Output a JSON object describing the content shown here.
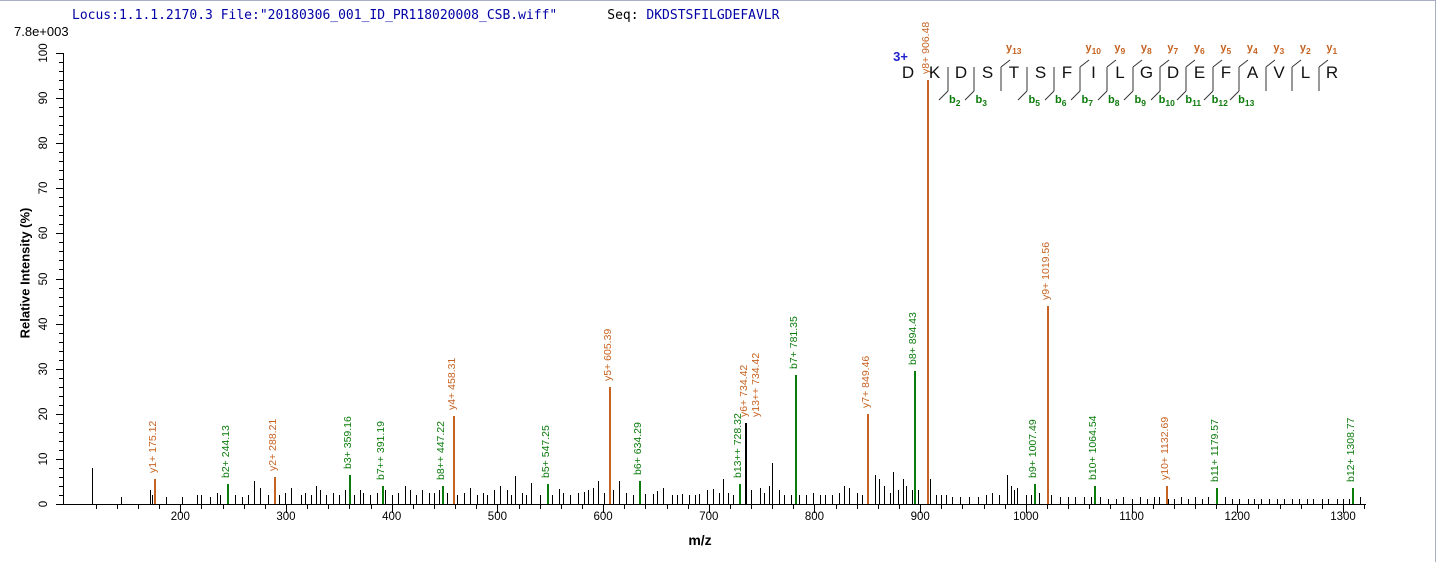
{
  "header": {
    "locus_file": "Locus:1.1.1.2170.3 File:\"20180306_001_ID_PR118020008_CSB.wiff\"",
    "seq_label": "Seq:",
    "sequence": "DKDSTSFILGDEFAVLR"
  },
  "peptide": {
    "charge": "3+",
    "residues": [
      "D",
      "K",
      "D",
      "S",
      "T",
      "S",
      "F",
      "I",
      "L",
      "G",
      "D",
      "E",
      "F",
      "A",
      "V",
      "L",
      "R"
    ],
    "cleavages": [
      {
        "after": 2,
        "b": "b2"
      },
      {
        "after": 3,
        "b": "b3"
      },
      {
        "after": 4,
        "y": "y13"
      },
      {
        "after": 5,
        "b": "b5"
      },
      {
        "after": 6,
        "b": "b6"
      },
      {
        "after": 7,
        "b": "b7",
        "y": "y10"
      },
      {
        "after": 8,
        "b": "b8",
        "y": "y9"
      },
      {
        "after": 9,
        "b": "b9",
        "y": "y8"
      },
      {
        "after": 10,
        "b": "b10",
        "y": "y7"
      },
      {
        "after": 11,
        "b": "b11",
        "y": "y6"
      },
      {
        "after": 12,
        "b": "b12",
        "y": "y5"
      },
      {
        "after": 13,
        "b": "b13",
        "y": "y4"
      },
      {
        "after": 14,
        "y": "y3"
      },
      {
        "after": 15,
        "y": "y2"
      },
      {
        "after": 16,
        "y": "y1"
      }
    ]
  },
  "chart_data": {
    "type": "bar",
    "subtype": "ms2-fragment-stick-spectrum",
    "title": "",
    "xlabel": "m/z",
    "ylabel": "Relative  Intensity (%)",
    "base_peak_intensity": "7.8e+003",
    "xlim": [
      90,
      1330
    ],
    "ylim": [
      0,
      100
    ],
    "x_ticks": [
      200,
      300,
      400,
      500,
      600,
      700,
      800,
      900,
      1000,
      1100,
      1200,
      1300
    ],
    "x_minor_step": 20,
    "y_ticks": [
      0,
      10,
      20,
      30,
      40,
      50,
      60,
      70,
      80,
      90,
      100
    ],
    "y_minor_step": 2,
    "grid": false,
    "legend": "none",
    "colors": {
      "y_series": "#c66322",
      "b_series": "#0b7b0b",
      "unassigned": "#000000",
      "dual_label": "#c66322"
    },
    "labeled_peaks": [
      {
        "ions": [
          "y1+"
        ],
        "mz": 175.12,
        "intensity": 5.5,
        "series": "y"
      },
      {
        "ions": [
          "b2+"
        ],
        "mz": 244.13,
        "intensity": 4.5,
        "series": "b"
      },
      {
        "ions": [
          "y2+"
        ],
        "mz": 288.21,
        "intensity": 6,
        "series": "y"
      },
      {
        "ions": [
          "b3+"
        ],
        "mz": 359.16,
        "intensity": 6.5,
        "series": "b"
      },
      {
        "ions": [
          "b7++"
        ],
        "mz": 391.19,
        "intensity": 4,
        "series": "b",
        "occluded_label": "391.19"
      },
      {
        "ions": [
          "b8++"
        ],
        "mz": 447.22,
        "intensity": 4,
        "series": "b"
      },
      {
        "ions": [
          "y4+"
        ],
        "mz": 458.31,
        "intensity": 19.5,
        "series": "y"
      },
      {
        "ions": [
          "b5+"
        ],
        "mz": 547.25,
        "intensity": 4.5,
        "series": "b"
      },
      {
        "ions": [
          "y5+"
        ],
        "mz": 605.39,
        "intensity": 26,
        "series": "y"
      },
      {
        "ions": [
          "b6+"
        ],
        "mz": 634.29,
        "intensity": 5,
        "series": "b"
      },
      {
        "ions": [
          "b13++"
        ],
        "mz": 728.32,
        "intensity": 4.5,
        "series": "b"
      },
      {
        "ions": [
          "y6+",
          "y13++"
        ],
        "mz": 734.42,
        "intensity": 18,
        "series": "dual"
      },
      {
        "ions": [
          "b7+"
        ],
        "mz": 781.35,
        "intensity": 28.5,
        "series": "b"
      },
      {
        "ions": [
          "y7+"
        ],
        "mz": 849.46,
        "intensity": 20,
        "series": "y"
      },
      {
        "ions": [
          "b8+"
        ],
        "mz": 894.43,
        "intensity": 29.5,
        "series": "b"
      },
      {
        "ions": [
          "y8+"
        ],
        "mz": 906.48,
        "intensity": 100,
        "series": "y",
        "display_intensity": 94,
        "base_peak": true
      },
      {
        "ions": [
          "b9+"
        ],
        "mz": 1007.49,
        "intensity": 4.5,
        "series": "b"
      },
      {
        "ions": [
          "y9+"
        ],
        "mz": 1019.56,
        "intensity": 44,
        "series": "y"
      },
      {
        "ions": [
          "b10+"
        ],
        "mz": 1064.54,
        "intensity": 4,
        "series": "b"
      },
      {
        "ions": [
          "y10+"
        ],
        "mz": 1132.69,
        "intensity": 4,
        "series": "y"
      },
      {
        "ions": [
          "b11+"
        ],
        "mz": 1179.57,
        "intensity": 3.5,
        "series": "b"
      },
      {
        "ions": [
          "b12+"
        ],
        "mz": 1308.77,
        "intensity": 3.5,
        "series": "b"
      }
    ],
    "unlabeled_peaks": [
      [
        116,
        8
      ],
      [
        144,
        1.5
      ],
      [
        171,
        3
      ],
      [
        173,
        2
      ],
      [
        186,
        1.5
      ],
      [
        202,
        1.5
      ],
      [
        216,
        2
      ],
      [
        220,
        2
      ],
      [
        228,
        1.5
      ],
      [
        235,
        2.5
      ],
      [
        238,
        2
      ],
      [
        252,
        2
      ],
      [
        258,
        1.5
      ],
      [
        264,
        2
      ],
      [
        270,
        5
      ],
      [
        275,
        3.5
      ],
      [
        283,
        2
      ],
      [
        293,
        2
      ],
      [
        299,
        2.5
      ],
      [
        305,
        3.5
      ],
      [
        314,
        2
      ],
      [
        318,
        2.5
      ],
      [
        324,
        2
      ],
      [
        328,
        4
      ],
      [
        332,
        3
      ],
      [
        338,
        2
      ],
      [
        344,
        2.5
      ],
      [
        350,
        2
      ],
      [
        356,
        3
      ],
      [
        364,
        2
      ],
      [
        370,
        3
      ],
      [
        373,
        2.5
      ],
      [
        379,
        2
      ],
      [
        386,
        2.5
      ],
      [
        394,
        3
      ],
      [
        400,
        2
      ],
      [
        406,
        2.5
      ],
      [
        413,
        4
      ],
      [
        417,
        3
      ],
      [
        423,
        2
      ],
      [
        429,
        3
      ],
      [
        435,
        2.5
      ],
      [
        440,
        2.5
      ],
      [
        445,
        3
      ],
      [
        452,
        2.5
      ],
      [
        462,
        2
      ],
      [
        468,
        2.5
      ],
      [
        474,
        3.5
      ],
      [
        481,
        2
      ],
      [
        486,
        2.5
      ],
      [
        490,
        2
      ],
      [
        497,
        3
      ],
      [
        502,
        4
      ],
      [
        509,
        3
      ],
      [
        513,
        2
      ],
      [
        517,
        6.2
      ],
      [
        523,
        2.5
      ],
      [
        527,
        2
      ],
      [
        532,
        4.7
      ],
      [
        540,
        2
      ],
      [
        552,
        2
      ],
      [
        558,
        3.3
      ],
      [
        562,
        2.5
      ],
      [
        569,
        2
      ],
      [
        576,
        2.5
      ],
      [
        582,
        2.7
      ],
      [
        586,
        3
      ],
      [
        590,
        3.5
      ],
      [
        595,
        5
      ],
      [
        601,
        2.5
      ],
      [
        609,
        3
      ],
      [
        615,
        5
      ],
      [
        622,
        2.5
      ],
      [
        628,
        2
      ],
      [
        640,
        2.3
      ],
      [
        647,
        2.3
      ],
      [
        651,
        2.8
      ],
      [
        657,
        3.5
      ],
      [
        665,
        2
      ],
      [
        670,
        2
      ],
      [
        675,
        2.2
      ],
      [
        681,
        2
      ],
      [
        687,
        2
      ],
      [
        691,
        2.3
      ],
      [
        698,
        3
      ],
      [
        704,
        3.3
      ],
      [
        710,
        2.5
      ],
      [
        713,
        5.5
      ],
      [
        718,
        2.5
      ],
      [
        723,
        2
      ],
      [
        740,
        3
      ],
      [
        748,
        3.5
      ],
      [
        752,
        2.5
      ],
      [
        757,
        4
      ],
      [
        760,
        9
      ],
      [
        766,
        3
      ],
      [
        771,
        2
      ],
      [
        778,
        2
      ],
      [
        785,
        2
      ],
      [
        792,
        2
      ],
      [
        799,
        2.5
      ],
      [
        805,
        2
      ],
      [
        810,
        2
      ],
      [
        817,
        2
      ],
      [
        823,
        2.5
      ],
      [
        828,
        4
      ],
      [
        833,
        3.5
      ],
      [
        840,
        2.5
      ],
      [
        845,
        2
      ],
      [
        857,
        6.5
      ],
      [
        861,
        5.5
      ],
      [
        866,
        4
      ],
      [
        871,
        2.5
      ],
      [
        874,
        7
      ],
      [
        879,
        3
      ],
      [
        884,
        5.5
      ],
      [
        887,
        4
      ],
      [
        892,
        3
      ],
      [
        898,
        3
      ],
      [
        909,
        5.5
      ],
      [
        915,
        2
      ],
      [
        920,
        2
      ],
      [
        924,
        2
      ],
      [
        930,
        1.5
      ],
      [
        938,
        1.5
      ],
      [
        946,
        1.5
      ],
      [
        955,
        1.5
      ],
      [
        962,
        2
      ],
      [
        968,
        2.5
      ],
      [
        975,
        2
      ],
      [
        982,
        6.5
      ],
      [
        986,
        4
      ],
      [
        989,
        3
      ],
      [
        992,
        3.5
      ],
      [
        1000,
        2
      ],
      [
        1005,
        2
      ],
      [
        1012,
        2.5
      ],
      [
        1024,
        2
      ],
      [
        1032,
        1.5
      ],
      [
        1040,
        1.5
      ],
      [
        1046,
        1.5
      ],
      [
        1055,
        1.5
      ],
      [
        1062,
        1.5
      ],
      [
        1070,
        1.5
      ],
      [
        1078,
        1.2
      ],
      [
        1085,
        1.2
      ],
      [
        1092,
        1.5
      ],
      [
        1100,
        1.2
      ],
      [
        1108,
        1.5
      ],
      [
        1115,
        1.2
      ],
      [
        1121,
        1.5
      ],
      [
        1126,
        1.5
      ],
      [
        1134,
        1.2
      ],
      [
        1140,
        1.2
      ],
      [
        1147,
        1.5
      ],
      [
        1153,
        1.2
      ],
      [
        1160,
        1.5
      ],
      [
        1167,
        1.2
      ],
      [
        1172,
        1.5
      ],
      [
        1180,
        1.2
      ],
      [
        1188,
        1.5
      ],
      [
        1195,
        1.2
      ],
      [
        1202,
        1.2
      ],
      [
        1210,
        1
      ],
      [
        1216,
        1.2
      ],
      [
        1222,
        1
      ],
      [
        1230,
        1.2
      ],
      [
        1238,
        1
      ],
      [
        1244,
        1.2
      ],
      [
        1252,
        1
      ],
      [
        1258,
        1.2
      ],
      [
        1266,
        1
      ],
      [
        1272,
        1.2
      ],
      [
        1280,
        1
      ],
      [
        1286,
        1.2
      ],
      [
        1294,
        1
      ],
      [
        1300,
        1.2
      ],
      [
        1306,
        1
      ],
      [
        1316,
        1.5
      ]
    ]
  }
}
